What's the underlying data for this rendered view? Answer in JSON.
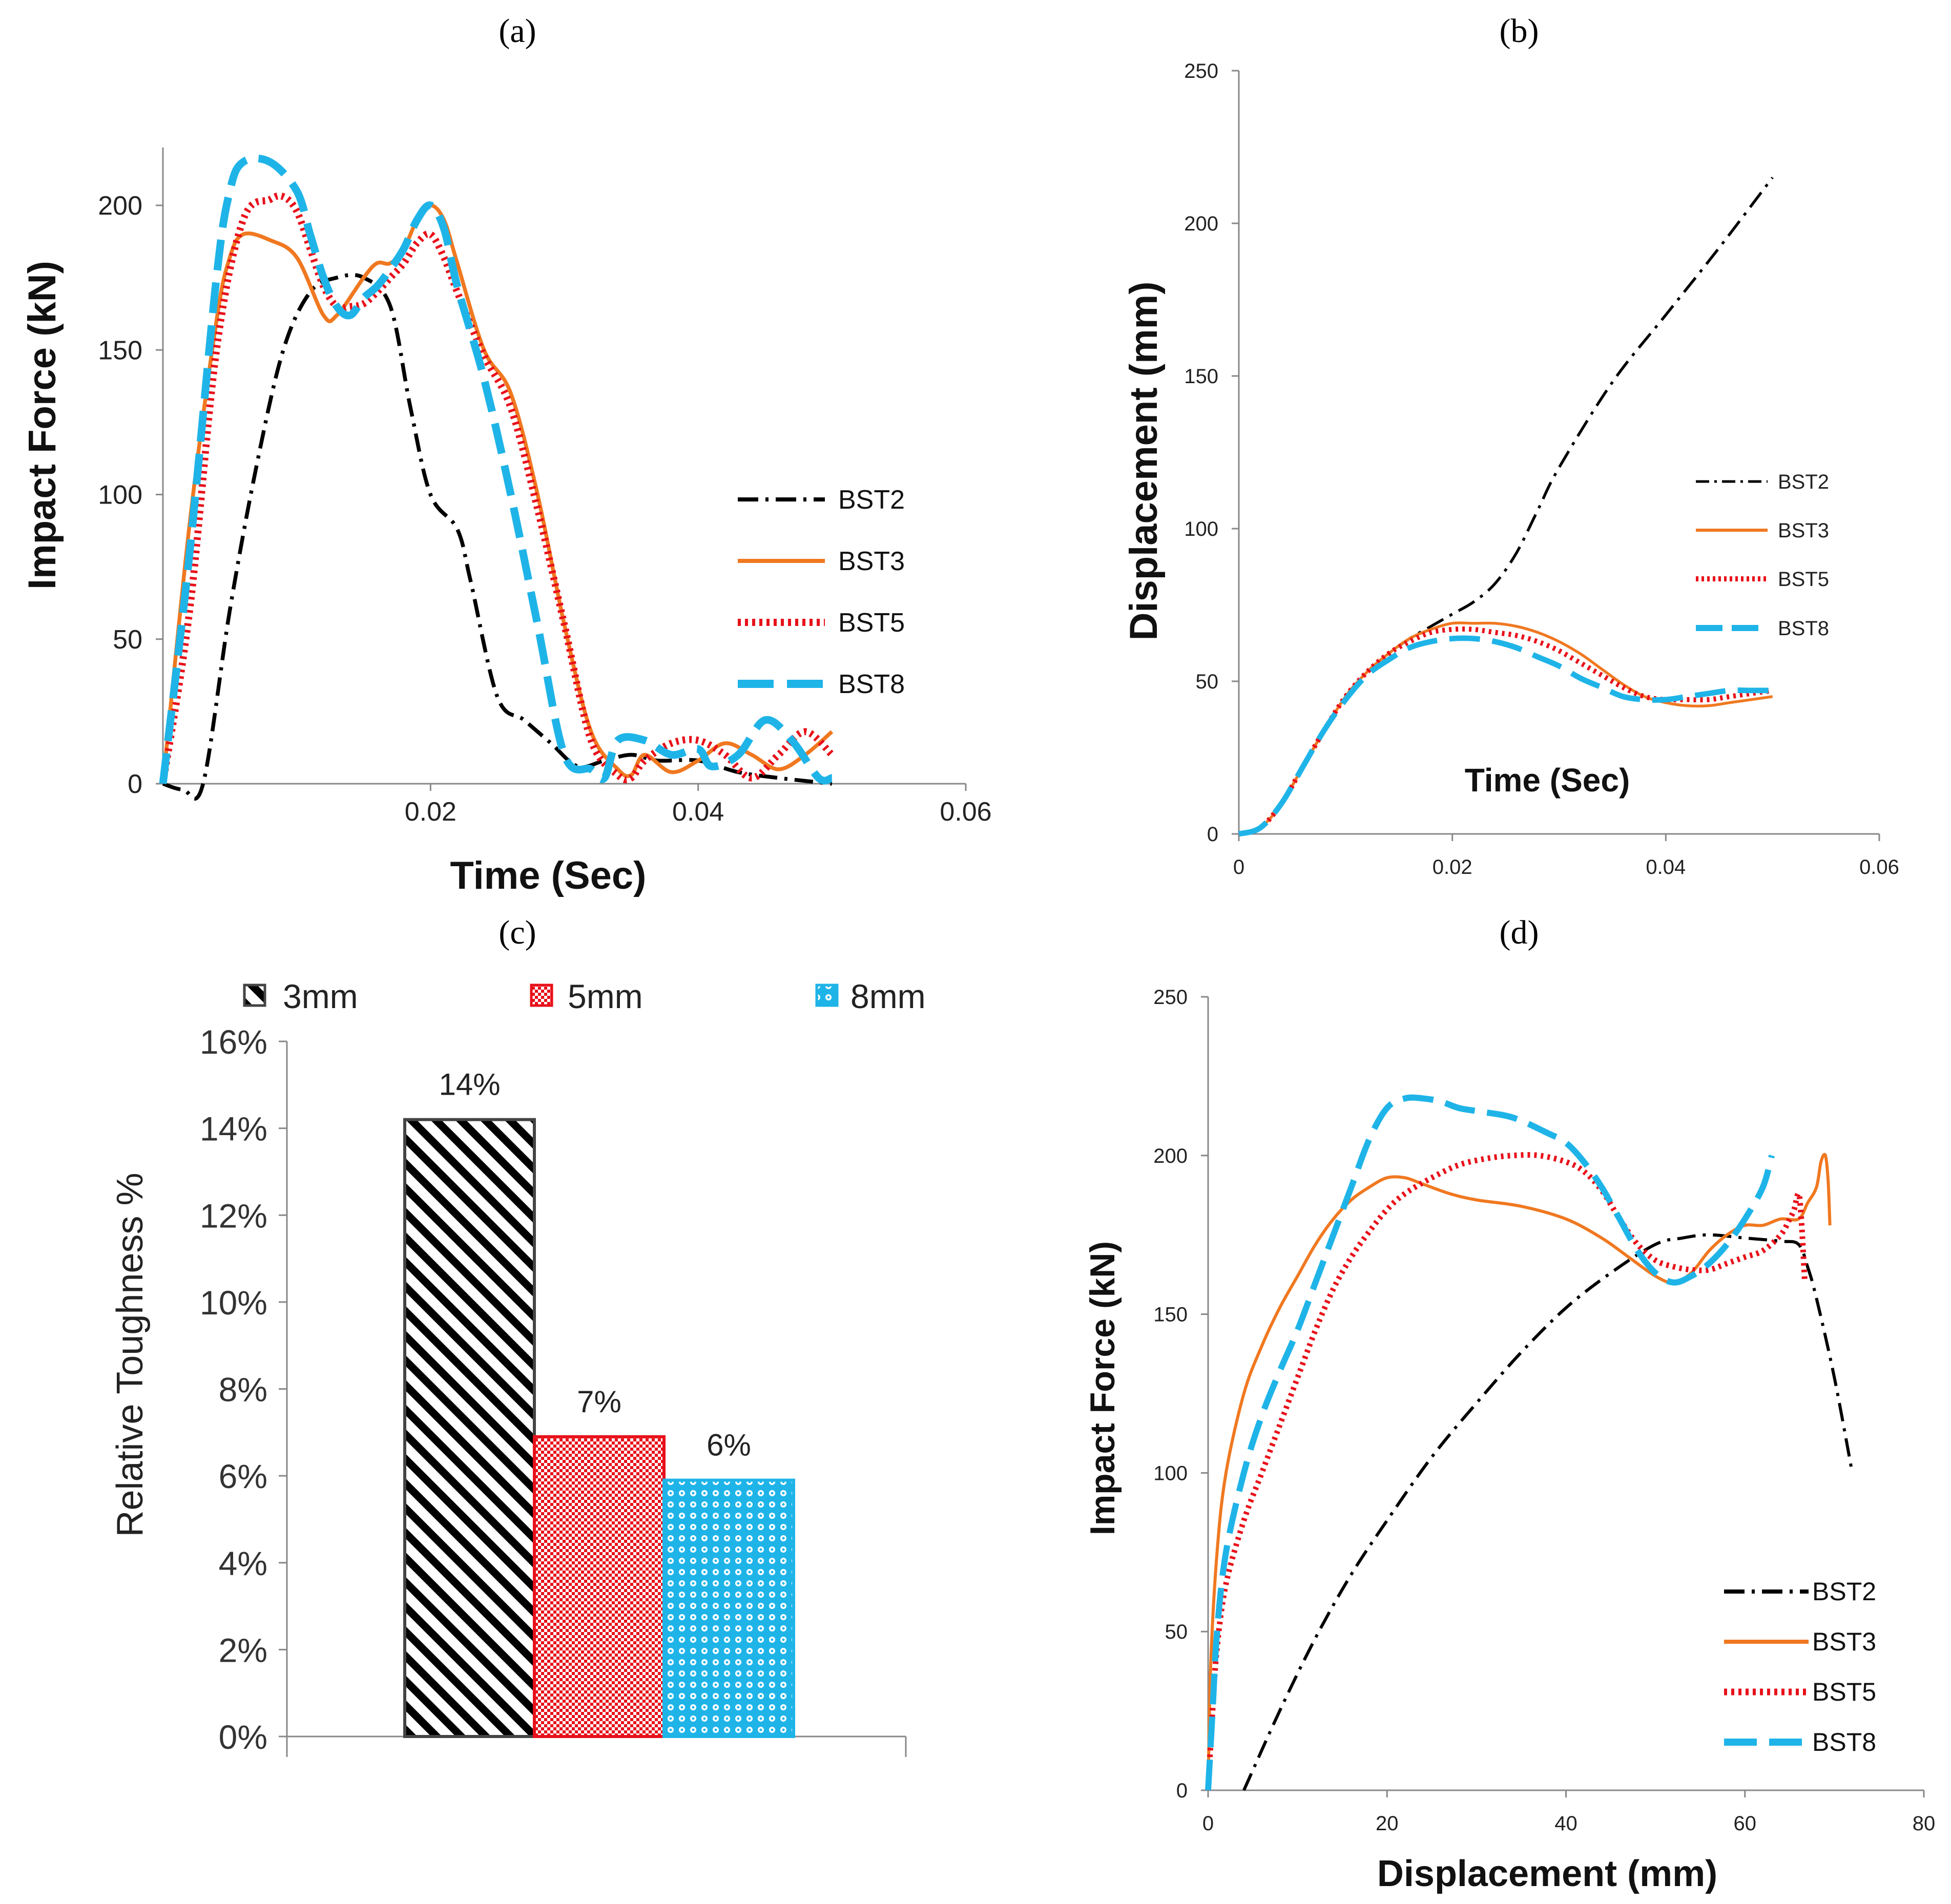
{
  "panels": {
    "a": "(a)",
    "b": "(b)",
    "c": "(c)",
    "d": "(d)"
  },
  "colors": {
    "BST2": "#000000",
    "BST3": "#F07820",
    "BST5": "#E8101A",
    "BST8": "#1FB4E8",
    "bar_3mm": "#000000",
    "bar_5mm": "#E8101A",
    "bar_8mm": "#1FB4E8"
  },
  "chart_data": [
    {
      "id": "a",
      "type": "line",
      "title": "(a)",
      "xlabel": "Time (Sec)",
      "ylabel": "Impact Force (kN)",
      "xlim": [
        0,
        0.06
      ],
      "ylim": [
        0,
        220
      ],
      "xticks": [
        0.02,
        0.04,
        0.06
      ],
      "xtick_labels": [
        "0.02",
        "0.04",
        "0.06"
      ],
      "yticks": [
        0,
        50,
        100,
        150,
        200
      ],
      "ytick_labels": [
        "0",
        "50",
        "100",
        "150",
        "200"
      ],
      "legend": [
        "BST2",
        "BST3",
        "BST5",
        "BST8"
      ],
      "series": [
        {
          "name": "BST2",
          "x": [
            0,
            0.0015,
            0.003,
            0.005,
            0.007,
            0.009,
            0.011,
            0.013,
            0.015,
            0.017,
            0.0185,
            0.02,
            0.022,
            0.023,
            0.025,
            0.027,
            0.029,
            0.031,
            0.033,
            0.035,
            0.037,
            0.04,
            0.043,
            0.046,
            0.05
          ],
          "y": [
            0,
            -2,
            0,
            60,
            110,
            150,
            170,
            175,
            175,
            165,
            130,
            100,
            88,
            70,
            30,
            22,
            14,
            6,
            8,
            10,
            8,
            8,
            4,
            2,
            0
          ]
        },
        {
          "name": "BST3",
          "x": [
            0,
            0.002,
            0.004,
            0.005,
            0.006,
            0.008,
            0.01,
            0.012,
            0.013,
            0.015,
            0.016,
            0.017,
            0.018,
            0.019,
            0.02,
            0.021,
            0.022,
            0.024,
            0.026,
            0.028,
            0.03,
            0.032,
            0.034,
            0.035,
            0.036,
            0.038,
            0.04,
            0.042,
            0.044,
            0.046,
            0.048,
            0.05
          ],
          "y": [
            0,
            90,
            160,
            182,
            190,
            188,
            182,
            162,
            162,
            175,
            180,
            180,
            185,
            195,
            200,
            195,
            180,
            150,
            135,
            100,
            55,
            18,
            5,
            3,
            10,
            4,
            8,
            14,
            10,
            5,
            10,
            18
          ]
        },
        {
          "name": "BST5",
          "x": [
            0,
            0.002,
            0.004,
            0.006,
            0.008,
            0.009,
            0.01,
            0.011,
            0.012,
            0.013,
            0.014,
            0.015,
            0.016,
            0.017,
            0.018,
            0.019,
            0.02,
            0.021,
            0.022,
            0.024,
            0.026,
            0.028,
            0.03,
            0.032,
            0.034,
            0.035,
            0.036,
            0.038,
            0.04,
            0.042,
            0.044,
            0.046,
            0.048,
            0.05
          ],
          "y": [
            0,
            60,
            150,
            195,
            202,
            203,
            198,
            185,
            172,
            165,
            165,
            166,
            170,
            175,
            180,
            187,
            190,
            182,
            170,
            148,
            130,
            95,
            55,
            15,
            3,
            2,
            8,
            14,
            15,
            10,
            2,
            10,
            18,
            10
          ]
        },
        {
          "name": "BST8",
          "x": [
            0,
            0.002,
            0.004,
            0.005,
            0.006,
            0.008,
            0.01,
            0.011,
            0.012,
            0.013,
            0.014,
            0.015,
            0.016,
            0.017,
            0.018,
            0.019,
            0.02,
            0.021,
            0.022,
            0.024,
            0.026,
            0.028,
            0.03,
            0.032,
            0.033,
            0.034,
            0.036,
            0.038,
            0.04,
            0.041,
            0.043,
            0.045,
            0.047,
            0.049,
            0.05
          ],
          "y": [
            0,
            80,
            175,
            205,
            215,
            215,
            205,
            190,
            175,
            165,
            162,
            168,
            172,
            178,
            185,
            195,
            200,
            192,
            172,
            140,
            100,
            55,
            10,
            5,
            2,
            15,
            15,
            10,
            12,
            6,
            10,
            22,
            15,
            2,
            2
          ]
        }
      ]
    },
    {
      "id": "b",
      "type": "line",
      "title": "(b)",
      "xlabel": "Time (Sec)",
      "ylabel": "Displacement (mm)",
      "xlim": [
        0,
        0.06
      ],
      "ylim": [
        0,
        250
      ],
      "xticks": [
        0,
        0.02,
        0.04,
        0.06
      ],
      "xtick_labels": [
        "0",
        "0.02",
        "0.04",
        "0.06"
      ],
      "yticks": [
        0,
        50,
        100,
        150,
        200,
        250
      ],
      "ytick_labels": [
        "0",
        "50",
        "100",
        "150",
        "200",
        "250"
      ],
      "legend": [
        "BST2",
        "BST3",
        "BST5",
        "BST8"
      ],
      "series": [
        {
          "name": "BST2",
          "x": [
            0,
            0.002,
            0.004,
            0.006,
            0.008,
            0.01,
            0.012,
            0.014,
            0.016,
            0.018,
            0.02,
            0.022,
            0.024,
            0.026,
            0.028,
            0.03,
            0.035,
            0.04,
            0.045,
            0.05
          ],
          "y": [
            0,
            2,
            10,
            22,
            34,
            45,
            53,
            59,
            64,
            68,
            72,
            76,
            82,
            92,
            106,
            120,
            148,
            170,
            192,
            215
          ]
        },
        {
          "name": "BST3",
          "x": [
            0,
            0.002,
            0.004,
            0.006,
            0.008,
            0.01,
            0.012,
            0.014,
            0.016,
            0.018,
            0.02,
            0.022,
            0.024,
            0.026,
            0.028,
            0.03,
            0.032,
            0.034,
            0.036,
            0.038,
            0.04,
            0.042,
            0.044,
            0.046,
            0.048,
            0.05
          ],
          "y": [
            0,
            2,
            10,
            22,
            34,
            45,
            53,
            59,
            64,
            67,
            69,
            69,
            69,
            68,
            66,
            63,
            59,
            54,
            49,
            45,
            43,
            42,
            42,
            43,
            44,
            45
          ]
        },
        {
          "name": "BST5",
          "x": [
            0,
            0.002,
            0.004,
            0.006,
            0.008,
            0.01,
            0.012,
            0.014,
            0.016,
            0.018,
            0.02,
            0.022,
            0.024,
            0.026,
            0.028,
            0.03,
            0.032,
            0.034,
            0.036,
            0.038,
            0.04,
            0.042,
            0.044,
            0.046,
            0.048,
            0.05
          ],
          "y": [
            0,
            2,
            10,
            22,
            34,
            45,
            53,
            59,
            63,
            66,
            67,
            67,
            66,
            65,
            63,
            60,
            56,
            52,
            48,
            45,
            44,
            44,
            44,
            45,
            46,
            47
          ]
        },
        {
          "name": "BST8",
          "x": [
            0,
            0.002,
            0.004,
            0.006,
            0.008,
            0.01,
            0.012,
            0.014,
            0.016,
            0.018,
            0.02,
            0.022,
            0.024,
            0.026,
            0.028,
            0.03,
            0.032,
            0.034,
            0.036,
            0.038,
            0.04,
            0.042,
            0.044,
            0.046,
            0.048,
            0.05
          ],
          "y": [
            0,
            2,
            10,
            22,
            34,
            44,
            52,
            57,
            61,
            63,
            64,
            64,
            63,
            61,
            58,
            55,
            51,
            48,
            45,
            44,
            44,
            45,
            46,
            47,
            47,
            47
          ]
        }
      ]
    },
    {
      "id": "c",
      "type": "bar",
      "title": "(c)",
      "xlabel": "",
      "ylabel": "Relative Toughness %",
      "ylim": [
        0,
        16
      ],
      "yticks": [
        0,
        2,
        4,
        6,
        8,
        10,
        12,
        14,
        16
      ],
      "ytick_labels": [
        "0%",
        "2%",
        "4%",
        "6%",
        "8%",
        "10%",
        "12%",
        "14%",
        "16%"
      ],
      "categories": [
        "3mm",
        "5mm",
        "8mm"
      ],
      "values": [
        14.2,
        6.9,
        5.9
      ],
      "value_labels": [
        "14%",
        "7%",
        "6%"
      ],
      "legend": [
        "3mm",
        "5mm",
        "8mm"
      ]
    },
    {
      "id": "d",
      "type": "line",
      "title": "(d)",
      "xlabel": "Displacement (mm)",
      "ylabel": "Impact Force (kN)",
      "xlim": [
        0,
        80
      ],
      "ylim": [
        0,
        250
      ],
      "xticks": [
        0,
        20,
        40,
        60,
        80
      ],
      "xtick_labels": [
        "0",
        "20",
        "40",
        "60",
        "80"
      ],
      "yticks": [
        0,
        50,
        100,
        150,
        200,
        250
      ],
      "ytick_labels": [
        "0",
        "50",
        "100",
        "150",
        "200",
        "250"
      ],
      "legend": [
        "BST2",
        "BST3",
        "BST5",
        "BST8"
      ],
      "series": [
        {
          "name": "BST2",
          "x": [
            4,
            8,
            12,
            16,
            20,
            25,
            30,
            35,
            40,
            45,
            50,
            53,
            56,
            60,
            64,
            66,
            67,
            68,
            70,
            72
          ],
          "y": [
            0,
            25,
            48,
            68,
            85,
            105,
            122,
            138,
            152,
            163,
            172,
            174,
            175,
            174,
            173,
            172,
            165,
            155,
            130,
            100
          ]
        },
        {
          "name": "BST3",
          "x": [
            0,
            0.3,
            1,
            2,
            4,
            6,
            8,
            10,
            12,
            14,
            16,
            18,
            20,
            22,
            24,
            27,
            30,
            35,
            40,
            44,
            47,
            50,
            52,
            54,
            56,
            58,
            60,
            62,
            64,
            66,
            67,
            68,
            68.5,
            69,
            69.3,
            69.5
          ],
          "y": [
            0,
            40,
            75,
            100,
            125,
            140,
            152,
            162,
            172,
            180,
            186,
            190,
            193,
            193,
            191,
            188,
            186,
            184,
            180,
            174,
            168,
            162,
            160,
            163,
            170,
            175,
            178,
            178,
            180,
            180,
            185,
            190,
            198,
            200,
            192,
            178
          ]
        },
        {
          "name": "BST5",
          "x": [
            0,
            0.5,
            1,
            2,
            4,
            6,
            8,
            10,
            12,
            14,
            16,
            18,
            20,
            22,
            25,
            28,
            31,
            34,
            37,
            40,
            42,
            44,
            46,
            48,
            50,
            52,
            54,
            56,
            58,
            60,
            62,
            64,
            65,
            65.5,
            66,
            66.3,
            66.7
          ],
          "y": [
            0,
            25,
            45,
            65,
            85,
            100,
            115,
            130,
            145,
            158,
            168,
            176,
            183,
            188,
            193,
            197,
            199,
            200,
            200,
            198,
            195,
            189,
            180,
            172,
            167,
            165,
            164,
            164,
            166,
            168,
            170,
            175,
            180,
            183,
            188,
            180,
            160
          ]
        },
        {
          "name": "BST8",
          "x": [
            0,
            0.5,
            1,
            2,
            4,
            6,
            8,
            10,
            12,
            14,
            16,
            18,
            20,
            22,
            24,
            26,
            28,
            30,
            34,
            38,
            40,
            42,
            44,
            46,
            48,
            50,
            52,
            54,
            56,
            58,
            60,
            62,
            63
          ],
          "y": [
            0,
            25,
            50,
            75,
            100,
            118,
            132,
            145,
            160,
            175,
            190,
            205,
            215,
            218,
            218,
            217,
            215,
            214,
            212,
            207,
            204,
            198,
            190,
            180,
            170,
            163,
            160,
            162,
            166,
            172,
            180,
            190,
            200
          ]
        }
      ]
    }
  ]
}
